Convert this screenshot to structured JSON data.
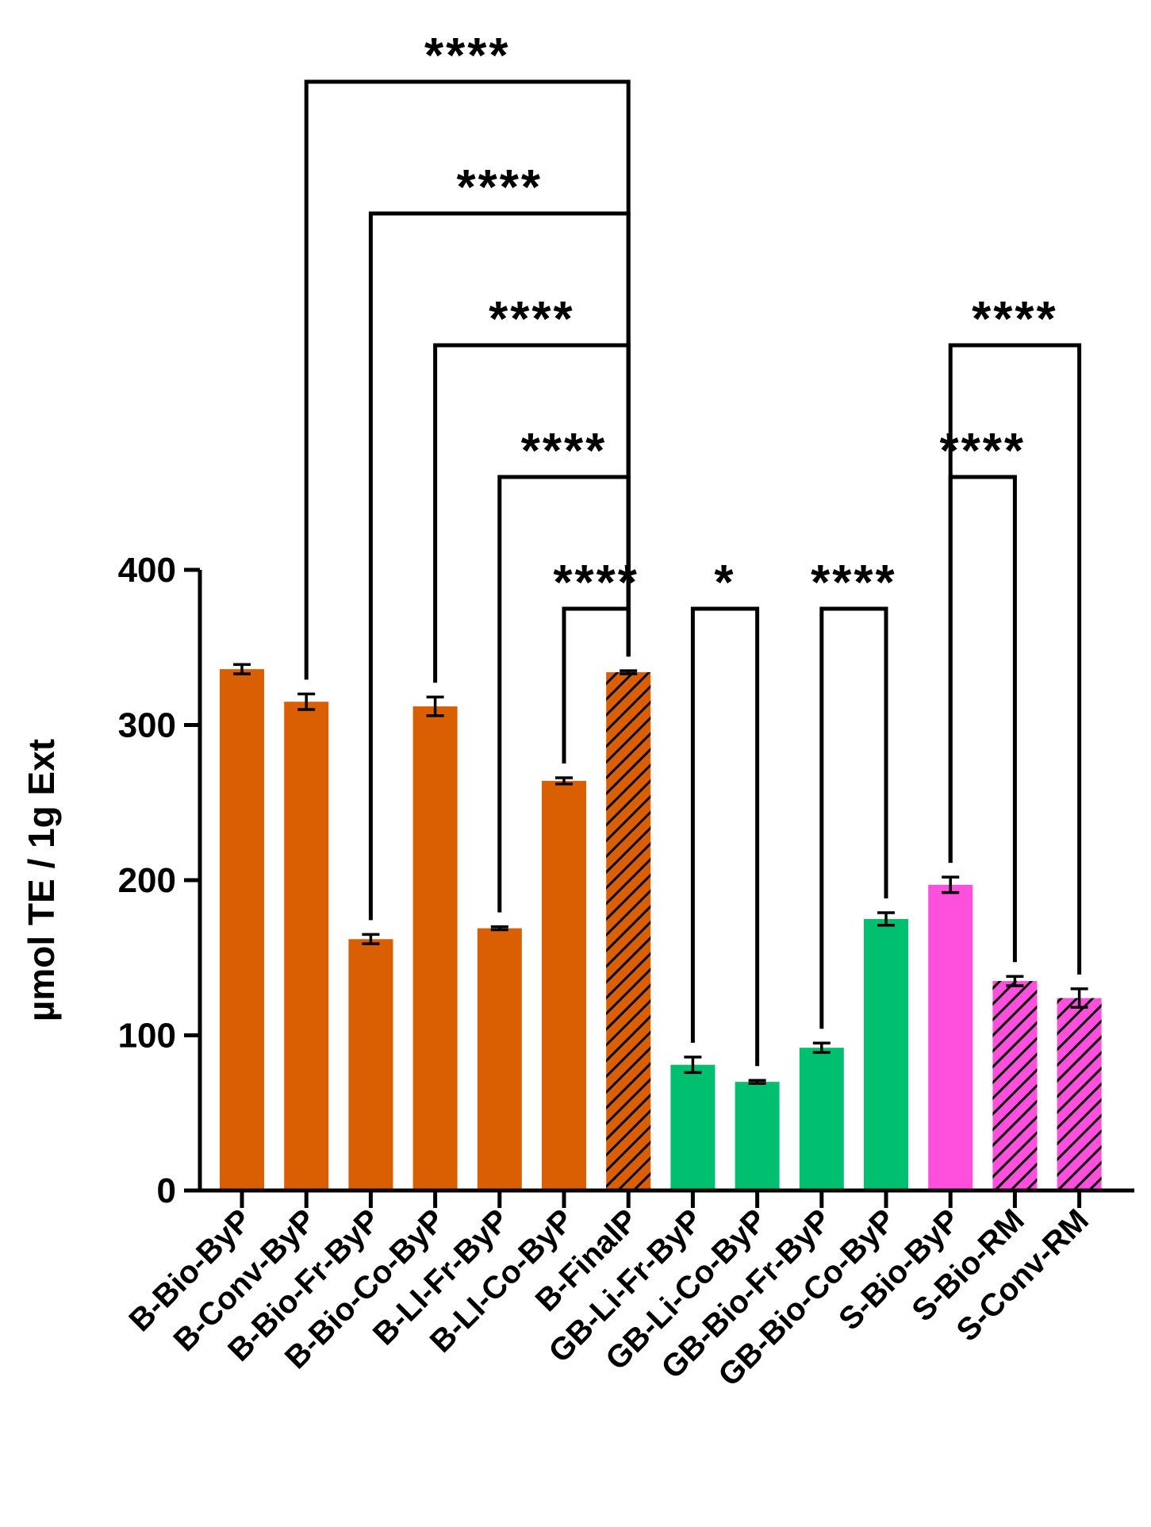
{
  "chart_data": {
    "type": "bar",
    "title": "",
    "xlabel": "",
    "ylabel": "µmol TE / 1g Ext",
    "ylim": [
      0,
      400
    ],
    "yticks": [
      0,
      100,
      200,
      300,
      400
    ],
    "grid": false,
    "legend": "none",
    "categories": [
      "B-Bio-ByP",
      "B-Conv-ByP",
      "B-Bio-Fr-ByP",
      "B-Bio-Co-ByP",
      "B-LI-Fr-ByP",
      "B-LI-Co-ByP",
      "B-FinalP",
      "GB-Li-Fr-ByP",
      "GB-Li-Co-ByP",
      "GB-Bio-Fr-ByP",
      "GB-Bio-Co-ByP",
      "S-Bio-ByP",
      "S-Bio-RM",
      "S-Conv-RM"
    ],
    "values": [
      336,
      315,
      162,
      312,
      169,
      264,
      334,
      81,
      70,
      92,
      175,
      197,
      135,
      124
    ],
    "errors": [
      3,
      5,
      3,
      6,
      1,
      2,
      1,
      5,
      1,
      3,
      4,
      5,
      3,
      6
    ],
    "colors": [
      "#d95f02",
      "#d95f02",
      "#d95f02",
      "#d95f02",
      "#d95f02",
      "#d95f02",
      "#d95f02",
      "#00bf6f",
      "#00bf6f",
      "#00bf6f",
      "#00bf6f",
      "#ff4fdc",
      "#ff4fdc",
      "#ff4fdc"
    ],
    "hatch": [
      "",
      "",
      "",
      "",
      "",
      "",
      "hatched",
      "",
      "",
      "",
      "",
      "",
      "hatched",
      "hatched"
    ],
    "significance": [
      {
        "from": 1,
        "to": 6,
        "label": "****",
        "rank": 4
      },
      {
        "from": 2,
        "to": 6,
        "label": "****",
        "rank": 3
      },
      {
        "from": 3,
        "to": 6,
        "label": "****",
        "rank": 2
      },
      {
        "from": 4,
        "to": 6,
        "label": "****",
        "rank": 1
      },
      {
        "from": 5,
        "to": 6,
        "label": "****",
        "rank": 0
      },
      {
        "from": 7,
        "to": 8,
        "label": "*",
        "rank": 0
      },
      {
        "from": 9,
        "to": 10,
        "label": "****",
        "rank": 0
      },
      {
        "from": 11,
        "to": 12,
        "label": "****",
        "rank": 1
      },
      {
        "from": 11,
        "to": 13,
        "label": "****",
        "rank": 2
      }
    ]
  }
}
